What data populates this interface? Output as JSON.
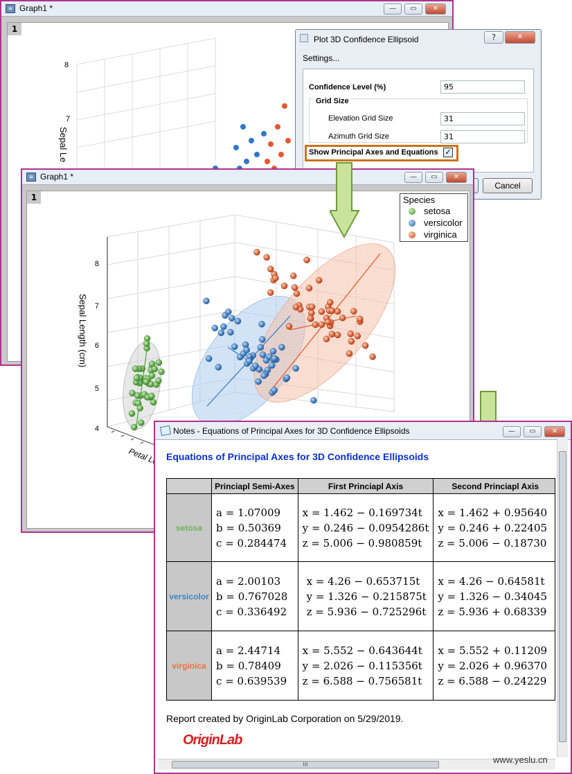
{
  "graph_back": {
    "title": "Graph1 *",
    "layer": "1",
    "axis_title": "Sepal Le",
    "ticks": [
      "8",
      "7"
    ]
  },
  "dialog": {
    "title": "Plot 3D Confidence Ellipsoid",
    "help": "?",
    "settings_label": "Settings...",
    "confidence_label": "Confidence Level (%)",
    "confidence_value": "95",
    "grid_size_label": "Grid Size",
    "elevation_label": "Elevation Grid Size",
    "elevation_value": "31",
    "azimuth_label": "Azimuth Grid Size",
    "azimuth_value": "31",
    "principal_label": "Show Principal Axes and Equations",
    "principal_checked": "✓",
    "cancel_label": "Cancel"
  },
  "graph_front": {
    "title": "Graph1 *",
    "layer": "1",
    "zlabel": "Sepal Length (cm)",
    "xlabel": "Petal Le",
    "zticks": [
      "8",
      "7",
      "6",
      "5",
      "4"
    ],
    "legend_title": "Species",
    "legend": [
      {
        "name": "setosa",
        "color": "#4aa63a"
      },
      {
        "name": "versicolor",
        "color": "#2f78c4"
      },
      {
        "name": "virginica",
        "color": "#e4572e"
      }
    ]
  },
  "notes": {
    "title": "Notes - Equations of Principal Axes for 3D Confidence Ellipsoids",
    "heading": "Equations of Principal Axes for 3D Confidence Ellipsoids",
    "headers": [
      "",
      "Princiapl Semi-Axes",
      "First Princiapl Axis",
      "Second Princiapl Axis"
    ],
    "rows": [
      {
        "species": "setosa",
        "color": "#6fb15a",
        "semi": [
          "a = 1.07009",
          "b = 0.50369",
          "c = 0.284474"
        ],
        "first": [
          "x = 1.462 − 0.169734t",
          "y = 0.246 − 0.0954286t",
          "z = 5.006 − 0.980859t"
        ],
        "second": [
          "x = 1.462 + 0.95640",
          "y = 0.246 + 0.22405",
          "z = 5.006 − 0.18730"
        ]
      },
      {
        "species": "versicolor",
        "color": "#3d86c6",
        "semi": [
          "a = 2.00103",
          "b = 0.767028",
          "c = 0.336492"
        ],
        "first": [
          "x = 4.26 − 0.653715t",
          "y = 1.326 − 0.215875t",
          "z = 5.936 − 0.725296t"
        ],
        "second": [
          "x = 4.26 − 0.64581t",
          "y = 1.326 − 0.34045",
          "z = 5.936 + 0.68339"
        ]
      },
      {
        "species": "virginica",
        "color": "#e8733a",
        "semi": [
          "a = 2.44714",
          "b = 0.78409",
          "c = 0.639539"
        ],
        "first": [
          "x = 5.552 − 0.643644t",
          "y = 2.026 − 0.115356t",
          "z = 6.588 − 0.756581t"
        ],
        "second": [
          "x = 5.552 + 0.11209",
          "y = 2.026 + 0.96370",
          "z = 6.588 − 0.24229"
        ]
      }
    ],
    "footer": "Report created by OriginLab Corporation on 5/29/2019.",
    "logo": "OriginLab",
    "hscroll_grip": "III"
  },
  "watermark": "www.yeslu.cn",
  "colors": {
    "arrow_fill": "#c9e39a",
    "arrow_stroke": "#6f9a3a",
    "highlight": "#c8741c",
    "heading": "#0a2fd0",
    "window_border": "#b03090"
  }
}
